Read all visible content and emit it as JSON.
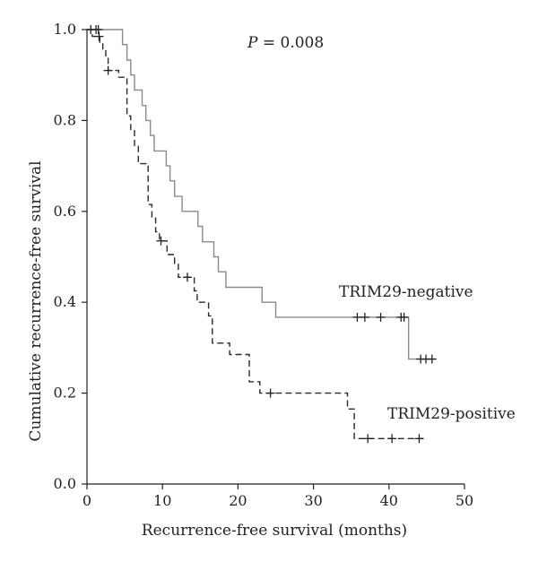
{
  "chart_data": {
    "type": "line",
    "chart_style": "kaplan-meier step survival curves with censoring marks",
    "xlabel": "Recurrence-free survival (months)",
    "ylabel": "Cumulative recurrence-free survival",
    "xlim": [
      0,
      50
    ],
    "ylim": [
      0,
      1.0
    ],
    "x_ticks": [
      "0",
      "10",
      "20",
      "30",
      "40",
      "50"
    ],
    "y_ticks": [
      "0.0",
      "0.2",
      "0.4",
      "0.6",
      "0.8",
      "1.0"
    ],
    "grid": false,
    "legend": "none (curves labelled directly)",
    "annotation": {
      "italic": "P",
      "rest": " = 0.008"
    },
    "series": [
      {
        "name": "TRIM29-negative",
        "line_style": "solid",
        "color": "#8a8a8a",
        "steps": [
          [
            0,
            1.0
          ],
          [
            4.7,
            0.967
          ],
          [
            5.3,
            0.933
          ],
          [
            5.8,
            0.9
          ],
          [
            6.3,
            0.867
          ],
          [
            7.3,
            0.833
          ],
          [
            7.8,
            0.8
          ],
          [
            8.4,
            0.767
          ],
          [
            8.9,
            0.733
          ],
          [
            10.5,
            0.7
          ],
          [
            11.0,
            0.667
          ],
          [
            11.6,
            0.633
          ],
          [
            12.6,
            0.6
          ],
          [
            14.7,
            0.567
          ],
          [
            15.3,
            0.533
          ],
          [
            16.8,
            0.5
          ],
          [
            17.4,
            0.467
          ],
          [
            18.4,
            0.433
          ],
          [
            23.2,
            0.4
          ],
          [
            25.0,
            0.367
          ],
          [
            42.6,
            0.275
          ]
        ],
        "end_x": 46.2,
        "censored": [
          0.5,
          1.2,
          1.5,
          35.8,
          36.8,
          38.9,
          41.6,
          42.0,
          44.2,
          44.9,
          45.7
        ]
      },
      {
        "name": "TRIM29-positive",
        "line_style": "dashed",
        "color": "#2a2a2a",
        "steps": [
          [
            0,
            1.0
          ],
          [
            0.7,
            0.985
          ],
          [
            1.7,
            0.97
          ],
          [
            2.1,
            0.955
          ],
          [
            2.5,
            0.94
          ],
          [
            2.8,
            0.91
          ],
          [
            4.2,
            0.895
          ],
          [
            5.3,
            0.81
          ],
          [
            5.8,
            0.78
          ],
          [
            6.3,
            0.745
          ],
          [
            6.8,
            0.705
          ],
          [
            8.1,
            0.615
          ],
          [
            8.6,
            0.585
          ],
          [
            9.1,
            0.555
          ],
          [
            9.6,
            0.535
          ],
          [
            10.6,
            0.505
          ],
          [
            11.6,
            0.485
          ],
          [
            12.1,
            0.455
          ],
          [
            14.2,
            0.425
          ],
          [
            14.6,
            0.4
          ],
          [
            16.1,
            0.37
          ],
          [
            16.6,
            0.31
          ],
          [
            18.9,
            0.285
          ],
          [
            21.5,
            0.225
          ],
          [
            22.9,
            0.2
          ],
          [
            34.5,
            0.165
          ],
          [
            35.4,
            0.1
          ]
        ],
        "end_x": 44.6,
        "censored": [
          1.6,
          2.8,
          9.8,
          13.3,
          24.3,
          37.2,
          40.4,
          44.0
        ]
      }
    ]
  }
}
